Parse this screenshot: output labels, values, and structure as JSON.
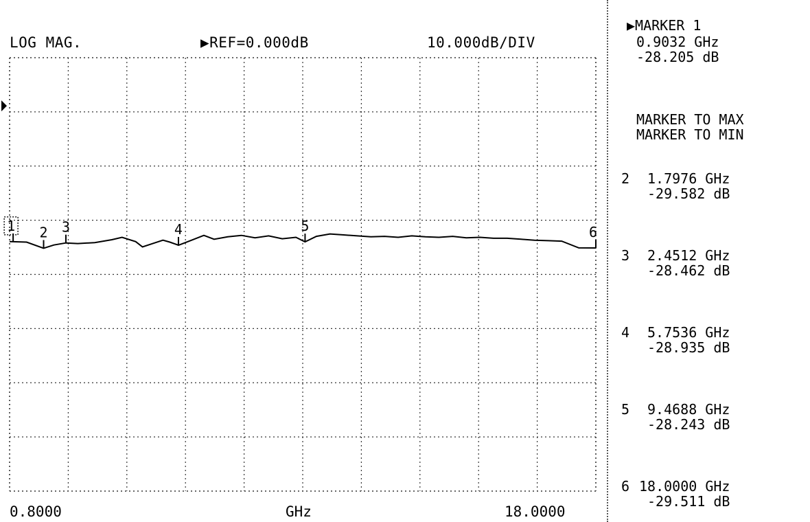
{
  "header": {
    "format": "LOG MAG.",
    "reference": "▶REF=0.000dB",
    "scale": "10.000dB/DIV"
  },
  "footer": {
    "start": "0.8000",
    "unit": "GHz",
    "stop": "18.0000"
  },
  "active_marker": {
    "title": "▶MARKER 1",
    "freq": "0.9032 GHz",
    "value": "-28.205 dB"
  },
  "marker_functions": [
    "MARKER TO MAX",
    "MARKER TO MIN"
  ],
  "marker_list": [
    {
      "num": "2",
      "freq": "1.7976 GHz",
      "value": "-29.582 dB"
    },
    {
      "num": "3",
      "freq": "2.4512 GHz",
      "value": "-28.462 dB"
    },
    {
      "num": "4",
      "freq": "5.7536 GHz",
      "value": "-28.935 dB"
    },
    {
      "num": "5",
      "freq": "9.4688 GHz",
      "value": "-28.243 dB"
    },
    {
      "num": "6",
      "freq": "18.0000 GHz",
      "value": "-29.511 dB"
    }
  ],
  "chart_data": {
    "type": "line",
    "title": "",
    "xlabel": "GHz",
    "ylabel": "",
    "xlim": [
      0.8,
      18.0
    ],
    "ylim": [
      -80,
      10
    ],
    "reference_level_db": 0,
    "db_per_div": 10,
    "grid": true,
    "series": [
      {
        "x": [
          0.8,
          0.9032,
          1.3,
          1.7976,
          2.1,
          2.4512,
          2.8,
          3.3,
          3.8,
          4.1,
          4.5,
          4.7,
          5.0,
          5.3,
          5.5,
          5.7536,
          6.1,
          6.5,
          6.8,
          7.2,
          7.6,
          8.0,
          8.4,
          8.8,
          9.2,
          9.4688,
          9.8,
          10.2,
          10.6,
          11.0,
          11.4,
          11.8,
          12.2,
          12.6,
          13.0,
          13.4,
          13.8,
          14.2,
          14.6,
          15.0,
          15.4,
          15.8,
          16.2,
          16.6,
          17.0,
          17.5,
          18.0
        ],
        "y": [
          -28.2,
          -28.205,
          -28.3,
          -29.582,
          -28.9,
          -28.462,
          -28.6,
          -28.4,
          -27.8,
          -27.3,
          -28.2,
          -29.3,
          -28.6,
          -27.9,
          -28.3,
          -28.935,
          -28.0,
          -26.9,
          -27.7,
          -27.2,
          -26.9,
          -27.4,
          -27.0,
          -27.6,
          -27.3,
          -28.243,
          -27.1,
          -26.6,
          -26.8,
          -27.0,
          -27.2,
          -27.1,
          -27.3,
          -27.0,
          -27.2,
          -27.3,
          -27.1,
          -27.4,
          -27.3,
          -27.5,
          -27.5,
          -27.7,
          -27.9,
          -28.0,
          -28.1,
          -29.5,
          -29.511
        ]
      }
    ],
    "markers": [
      {
        "label": "1",
        "x": 0.9032,
        "y": -28.205,
        "active": true
      },
      {
        "label": "2",
        "x": 1.7976,
        "y": -29.582
      },
      {
        "label": "3",
        "x": 2.4512,
        "y": -28.462
      },
      {
        "label": "4",
        "x": 5.7536,
        "y": -28.935
      },
      {
        "label": "5",
        "x": 9.4688,
        "y": -28.243
      },
      {
        "label": "6",
        "x": 18.0,
        "y": -29.511
      }
    ]
  }
}
